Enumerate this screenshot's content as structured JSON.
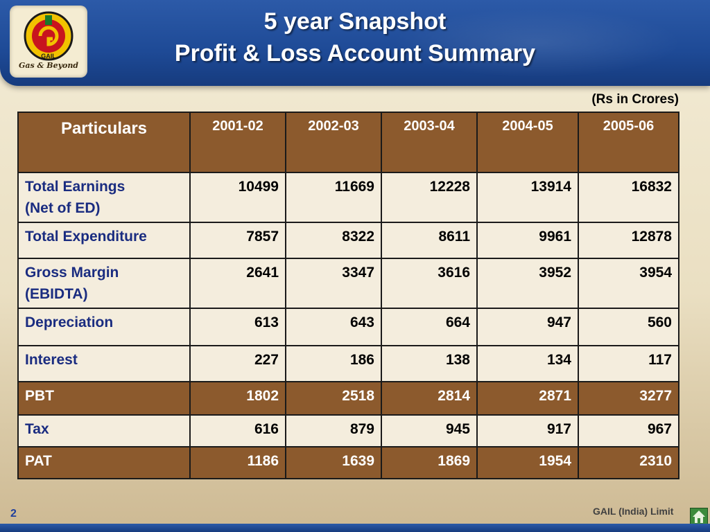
{
  "header": {
    "title_line1": "5 year Snapshot",
    "title_line2": "Profit & Loss Account Summary",
    "logo_tagline": "Gas & Beyond",
    "logo_text": "GAIL"
  },
  "units": "(Rs in Crores)",
  "table": {
    "first_col_header": "Particulars",
    "years": [
      "2001-02",
      "2002-03",
      "2003-04",
      "2004-05",
      "2005-06"
    ],
    "rows": [
      {
        "label": "Total Earnings",
        "label2": "(Net of ED)",
        "values": [
          "10499",
          "11669",
          "12228",
          "13914",
          "16832"
        ]
      },
      {
        "label": "Total Expenditure",
        "label2": "",
        "values": [
          "7857",
          "8322",
          "8611",
          "9961",
          "12878"
        ]
      },
      {
        "label": "Gross Margin",
        "label2": "(EBIDTA)",
        "values": [
          "2641",
          "3347",
          "3616",
          "3952",
          "3954"
        ]
      },
      {
        "label": "Depreciation",
        "label2": "",
        "values": [
          "613",
          "643",
          "664",
          "947",
          "560"
        ]
      },
      {
        "label": "Interest",
        "label2": "",
        "values": [
          "227",
          "186",
          "138",
          "134",
          "117"
        ]
      },
      {
        "label": "PBT",
        "label2": "",
        "values": [
          "1802",
          "2518",
          "2814",
          "2871",
          "3277"
        ]
      },
      {
        "label": "Tax",
        "label2": "",
        "values": [
          "616",
          "879",
          "945",
          "917",
          "967"
        ]
      },
      {
        "label": "PAT",
        "label2": "",
        "values": [
          "1186",
          "1639",
          "1869",
          "1954",
          "2310"
        ]
      }
    ]
  },
  "footer": {
    "page_number": "2",
    "company": "GAIL (India) Limit",
    "home_icon": "home-icon"
  },
  "colors": {
    "header_blue": "#1e4a96",
    "table_brown": "#8c5a2d",
    "row_light": "#f4eddd",
    "label_blue": "#1a2c80"
  }
}
